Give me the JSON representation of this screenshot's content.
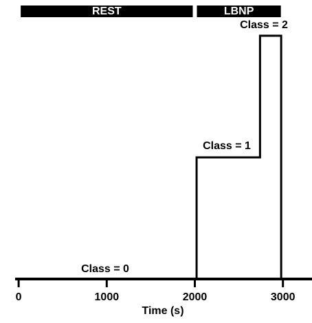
{
  "chart_data": {
    "type": "step",
    "x_label": "Time (s)",
    "xlim": [
      -40,
      3330
    ],
    "xticks": [
      0,
      1000,
      2000,
      3000
    ],
    "ylim": [
      0,
      2
    ],
    "color": "#000000",
    "series": [
      {
        "x": [
          0,
          2020,
          2020,
          2740,
          2740,
          2980,
          2980
        ],
        "values": [
          0,
          0,
          1,
          1,
          2,
          2,
          0
        ]
      }
    ],
    "phases": [
      {
        "label": "REST",
        "start": 0,
        "end": 2000
      },
      {
        "label": "LBNP",
        "start": 2000,
        "end": 3000
      }
    ],
    "annotations": [
      "Class = 0",
      "Class = 1",
      "Class = 2"
    ]
  }
}
